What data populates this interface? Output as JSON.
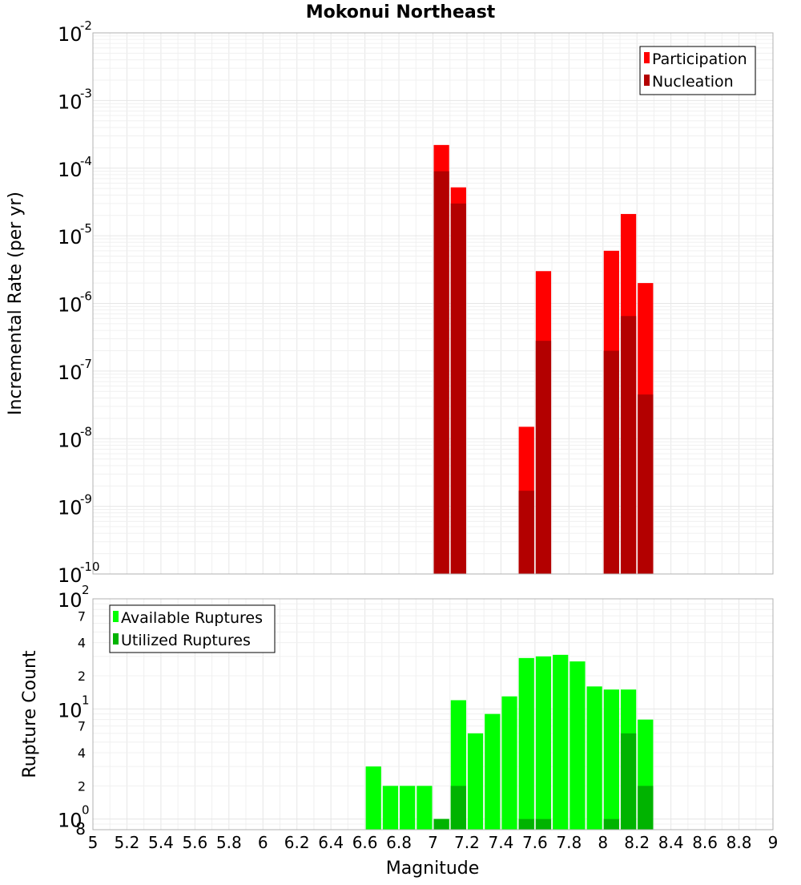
{
  "chart_data": [
    {
      "type": "bar",
      "title": "Mokonui Northeast",
      "xlabel": "",
      "ylabel": "Incremental Rate (per yr)",
      "yscale": "log",
      "ylim": [
        1e-10,
        0.01
      ],
      "xlim": [
        5,
        9
      ],
      "y_tick_labels": [
        {
          "base": "10",
          "exp": "-10"
        },
        {
          "base": "10",
          "exp": "-9"
        },
        {
          "base": "10",
          "exp": "-8"
        },
        {
          "base": "10",
          "exp": "-7"
        },
        {
          "base": "10",
          "exp": "-6"
        },
        {
          "base": "10",
          "exp": "-5"
        },
        {
          "base": "10",
          "exp": "-4"
        },
        {
          "base": "10",
          "exp": "-3"
        },
        {
          "base": "10",
          "exp": "-2"
        }
      ],
      "legend_position": "top-right",
      "bin_width": 0.1,
      "series": [
        {
          "name": "Participation",
          "color": "#ff0000",
          "x": [
            7.05,
            7.15,
            7.55,
            7.65,
            8.05,
            8.15,
            8.25
          ],
          "values": [
            0.00022,
            5.2e-05,
            1.5e-08,
            3e-06,
            6e-06,
            2.1e-05,
            2e-06
          ]
        },
        {
          "name": "Nucleation",
          "color": "#b30000",
          "x": [
            7.05,
            7.15,
            7.55,
            7.65,
            8.05,
            8.15,
            8.25
          ],
          "values": [
            9e-05,
            3e-05,
            1.7e-09,
            2.8e-07,
            2e-07,
            6.5e-07,
            4.5e-08
          ]
        }
      ]
    },
    {
      "type": "bar",
      "xlabel": "Magnitude",
      "ylabel": "Rupture Count",
      "yscale": "log",
      "ylim": [
        0.8,
        100
      ],
      "xlim": [
        5,
        9
      ],
      "x_ticks": [
        "5",
        "5.2",
        "5.4",
        "5.6",
        "5.8",
        "6",
        "6.2",
        "6.4",
        "6.6",
        "6.8",
        "7",
        "7.2",
        "7.4",
        "7.6",
        "7.8",
        "8",
        "8.2",
        "8.4",
        "8.6",
        "8.8",
        "9"
      ],
      "y_major_labels": [
        {
          "base": "10",
          "exp": "0",
          "value": 1
        },
        {
          "base": "10",
          "exp": "1",
          "value": 10
        },
        {
          "base": "10",
          "exp": "2",
          "value": 100
        }
      ],
      "y_minor_labels": [
        {
          "label": "8",
          "value": 0.8
        },
        {
          "label": "2",
          "value": 2
        },
        {
          "label": "4",
          "value": 4
        },
        {
          "label": "7",
          "value": 7
        },
        {
          "label": "2",
          "value": 20
        },
        {
          "label": "4",
          "value": 40
        },
        {
          "label": "7",
          "value": 70
        }
      ],
      "legend_position": "top-left",
      "bin_width": 0.1,
      "series": [
        {
          "name": "Available Ruptures",
          "color": "#00ff00",
          "x": [
            6.65,
            6.75,
            6.85,
            6.95,
            7.05,
            7.15,
            7.25,
            7.35,
            7.45,
            7.55,
            7.65,
            7.75,
            7.85,
            7.95,
            8.05,
            8.15,
            8.25
          ],
          "values": [
            3,
            2,
            2,
            2,
            1,
            12,
            6,
            9,
            13,
            29,
            30,
            31,
            27,
            16,
            15,
            15,
            8
          ]
        },
        {
          "name": "Utilized Ruptures",
          "color": "#00b300",
          "x": [
            6.95,
            7.05,
            7.15,
            7.25,
            7.35,
            7.45,
            7.55,
            7.65,
            7.75,
            7.85,
            7.95,
            8.05,
            8.15,
            8.25
          ],
          "values": [
            0,
            1,
            2,
            0,
            0,
            0,
            1,
            1,
            0,
            0,
            0,
            1,
            6,
            2
          ]
        }
      ]
    }
  ]
}
